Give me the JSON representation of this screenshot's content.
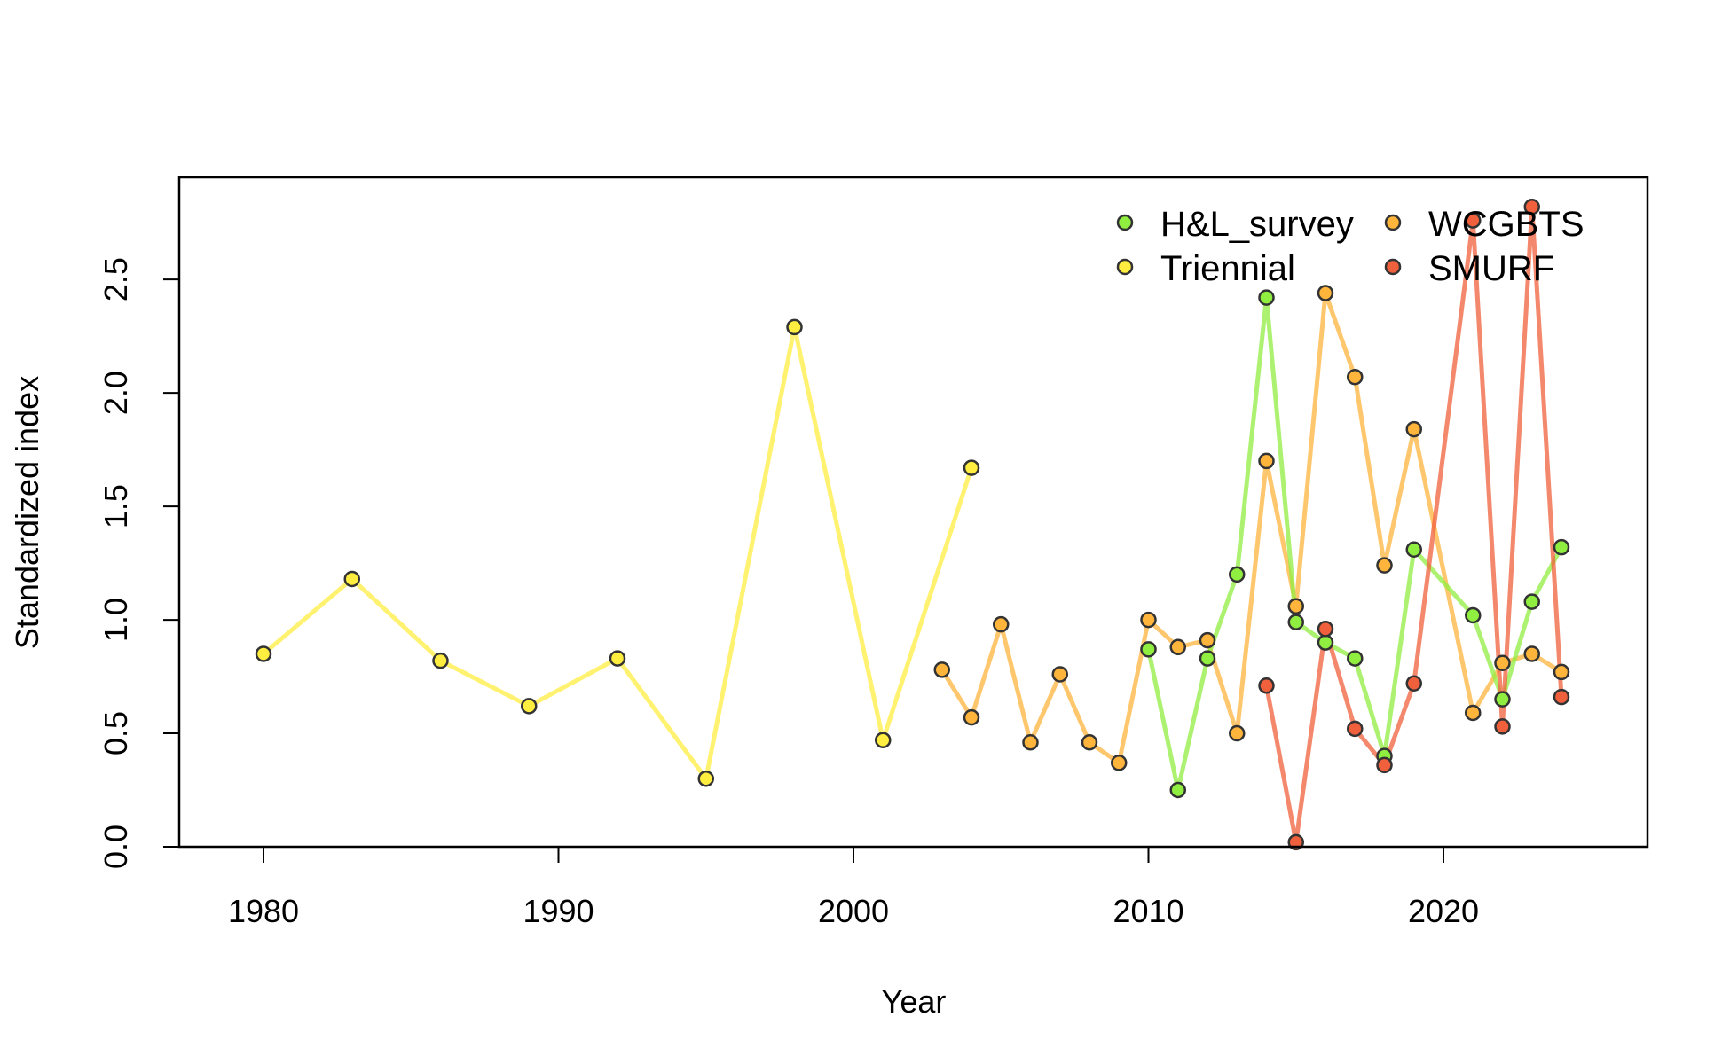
{
  "chart_data": {
    "type": "line",
    "title": "",
    "xlabel": "Year",
    "ylabel": "Standardized index",
    "xlim": [
      1977.2,
      2026.8
    ],
    "ylim": [
      0,
      2.9
    ],
    "xticks": [
      1980,
      1990,
      2000,
      2010,
      2020
    ],
    "yticks": [
      "0.0",
      "0.5",
      "1.0",
      "1.5",
      "2.0",
      "2.5"
    ],
    "legend_position": "top-right",
    "series": [
      {
        "name": "Triennial",
        "color": "#FFEE40",
        "x": [
          1980,
          1983,
          1986,
          1989,
          1992,
          1995,
          1998,
          2001,
          2004
        ],
        "y": [
          0.85,
          1.18,
          0.82,
          0.62,
          0.83,
          0.3,
          2.29,
          0.47,
          1.67
        ]
      },
      {
        "name": "WCGBTS",
        "color": "#FFB43C",
        "x": [
          2003,
          2004,
          2005,
          2006,
          2007,
          2008,
          2009,
          2010,
          2011,
          2012,
          2013,
          2014,
          2015,
          2016,
          2017,
          2018,
          2019,
          2021,
          2022,
          2023,
          2024
        ],
        "y": [
          0.78,
          0.57,
          0.98,
          0.46,
          0.76,
          0.46,
          0.37,
          1.0,
          0.88,
          0.91,
          0.5,
          1.7,
          1.06,
          2.44,
          2.07,
          1.24,
          1.84,
          0.59,
          0.81,
          0.85,
          0.77
        ]
      },
      {
        "name": "H&L_survey",
        "color": "#90EE40",
        "x": [
          2010,
          2011,
          2012,
          2013,
          2014,
          2015,
          2016,
          2017,
          2018,
          2019,
          2021,
          2022,
          2023,
          2024
        ],
        "y": [
          0.87,
          0.25,
          0.83,
          1.2,
          2.42,
          0.99,
          0.9,
          0.83,
          0.4,
          1.31,
          1.02,
          0.65,
          1.08,
          1.32
        ]
      },
      {
        "name": "SMURF",
        "color": "#F0603C",
        "x": [
          2014,
          2015,
          2016,
          2017,
          2018,
          2019,
          2021,
          2022,
          2023,
          2024
        ],
        "y": [
          0.71,
          0.02,
          0.96,
          0.52,
          0.36,
          0.72,
          2.76,
          0.53,
          2.82,
          0.66
        ]
      }
    ]
  },
  "legend": {
    "items": [
      {
        "label": "H&L_survey",
        "color": "#90EE40"
      },
      {
        "label": "WCGBTS",
        "color": "#FFB43C"
      },
      {
        "label": "Triennial",
        "color": "#FFEE40"
      },
      {
        "label": "SMURF",
        "color": "#F0603C"
      }
    ]
  }
}
